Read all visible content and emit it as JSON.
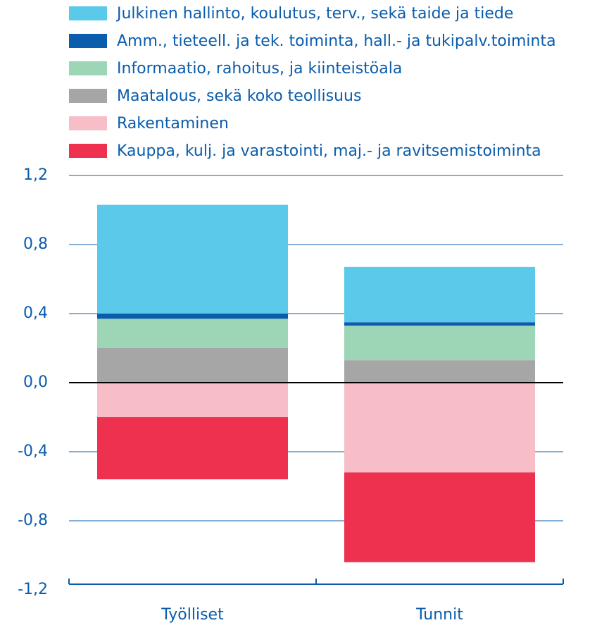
{
  "chart_data": {
    "type": "stacked_bar",
    "categories": [
      "Työlliset",
      "Tunnit"
    ],
    "series": [
      {
        "name": "Julkinen hallinto, koulutus, terv., sekä taide ja tiede",
        "color": "#5bc9ea",
        "values": [
          0.63,
          0.32
        ]
      },
      {
        "name": "Amm., tieteell. ja tek. toiminta, hall.- ja tukipalv.toiminta",
        "color": "#0a5cac",
        "values": [
          0.03,
          0.02
        ]
      },
      {
        "name": "Informaatio, rahoitus, ja kiinteistöala",
        "color": "#9dd5b7",
        "values": [
          0.17,
          0.2
        ]
      },
      {
        "name": "Maatalous, sekä koko teollisuus",
        "color": "#a6a6a6",
        "values": [
          0.2,
          0.13
        ]
      },
      {
        "name": "Rakentaminen",
        "color": "#f7bec8",
        "values": [
          -0.2,
          -0.52
        ]
      },
      {
        "name": "Kauppa, kulj. ja varastointi, maj.- ja ravitsemistoiminta",
        "color": "#ee314f",
        "values": [
          -0.36,
          -0.52
        ]
      }
    ],
    "ylim": [
      -1.2,
      1.2
    ],
    "yticks": [
      {
        "value": -1.2,
        "label": "-1,2"
      },
      {
        "value": -0.8,
        "label": "-0,8"
      },
      {
        "value": -0.4,
        "label": "-0,4"
      },
      {
        "value": 0,
        "label": "0,0"
      },
      {
        "value": 0.4,
        "label": "0,4"
      },
      {
        "value": 0.8,
        "label": "0,8"
      },
      {
        "value": 1.2,
        "label": "1,2"
      }
    ],
    "grid": true
  }
}
